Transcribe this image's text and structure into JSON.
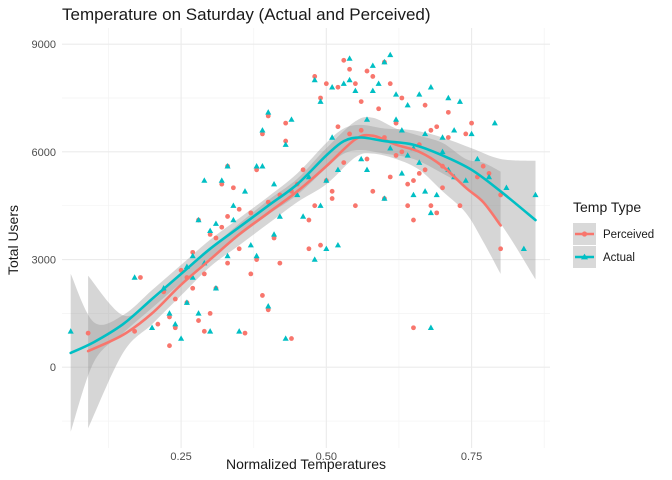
{
  "chart_data": {
    "type": "scatter",
    "title": "Temperature on Saturday (Actual and Perceived)",
    "xlabel": "Normalized Temperatures",
    "ylabel": "Total Users",
    "xlim": [
      0.045,
      0.885
    ],
    "ylim": [
      -2250,
      9450
    ],
    "x_ticks": [
      0.25,
      0.5,
      0.75
    ],
    "x_tick_labels": [
      "0.25",
      "0.50",
      "0.75"
    ],
    "x_minor_ticks": [
      0.125,
      0.375,
      0.625,
      0.875
    ],
    "y_ticks": [
      0,
      3000,
      6000,
      9000
    ],
    "y_tick_labels": [
      "0",
      "3000",
      "6000",
      "9000"
    ],
    "y_minor_ticks": [
      -1500,
      1500,
      4500,
      7500
    ],
    "grid": true,
    "legend": {
      "title": "Temp Type",
      "position": "right"
    },
    "series": [
      {
        "name": "Perceived",
        "color": "#F8766D",
        "marker": "circle",
        "points": [
          [
            0.09,
            950
          ],
          [
            0.17,
            1000
          ],
          [
            0.18,
            2500
          ],
          [
            0.21,
            1200
          ],
          [
            0.22,
            2100
          ],
          [
            0.23,
            1400
          ],
          [
            0.23,
            600
          ],
          [
            0.24,
            1900
          ],
          [
            0.24,
            1100
          ],
          [
            0.25,
            2700
          ],
          [
            0.26,
            1800
          ],
          [
            0.26,
            2500
          ],
          [
            0.27,
            2200
          ],
          [
            0.27,
            3200
          ],
          [
            0.28,
            4100
          ],
          [
            0.28,
            1300
          ],
          [
            0.29,
            2600
          ],
          [
            0.29,
            1000
          ],
          [
            0.3,
            3700
          ],
          [
            0.3,
            1500
          ],
          [
            0.31,
            3600
          ],
          [
            0.31,
            2200
          ],
          [
            0.32,
            5100
          ],
          [
            0.32,
            3900
          ],
          [
            0.33,
            5600
          ],
          [
            0.33,
            4200
          ],
          [
            0.33,
            2900
          ],
          [
            0.34,
            5000
          ],
          [
            0.35,
            4400
          ],
          [
            0.35,
            3300
          ],
          [
            0.36,
            950
          ],
          [
            0.37,
            4300
          ],
          [
            0.37,
            2600
          ],
          [
            0.38,
            5500
          ],
          [
            0.38,
            3000
          ],
          [
            0.39,
            6500
          ],
          [
            0.39,
            2000
          ],
          [
            0.4,
            7000
          ],
          [
            0.4,
            4600
          ],
          [
            0.4,
            1600
          ],
          [
            0.41,
            3600
          ],
          [
            0.42,
            2900
          ],
          [
            0.42,
            4800
          ],
          [
            0.43,
            6300
          ],
          [
            0.43,
            6800
          ],
          [
            0.44,
            800
          ],
          [
            0.44,
            4900
          ],
          [
            0.45,
            5100
          ],
          [
            0.46,
            5500
          ],
          [
            0.47,
            4100
          ],
          [
            0.47,
            3300
          ],
          [
            0.48,
            8100
          ],
          [
            0.48,
            4500
          ],
          [
            0.49,
            3400
          ],
          [
            0.49,
            7500
          ],
          [
            0.5,
            7900
          ],
          [
            0.5,
            5200
          ],
          [
            0.51,
            4700
          ],
          [
            0.51,
            4900
          ],
          [
            0.52,
            7800
          ],
          [
            0.52,
            6700
          ],
          [
            0.53,
            8550
          ],
          [
            0.53,
            5700
          ],
          [
            0.54,
            6500
          ],
          [
            0.54,
            8300
          ],
          [
            0.55,
            7900
          ],
          [
            0.55,
            4500
          ],
          [
            0.56,
            7400
          ],
          [
            0.56,
            6600
          ],
          [
            0.57,
            8250
          ],
          [
            0.57,
            5800
          ],
          [
            0.58,
            8100
          ],
          [
            0.58,
            4900
          ],
          [
            0.59,
            7200
          ],
          [
            0.6,
            8500
          ],
          [
            0.6,
            6400
          ],
          [
            0.6,
            4700
          ],
          [
            0.61,
            7900
          ],
          [
            0.61,
            5300
          ],
          [
            0.62,
            6800
          ],
          [
            0.62,
            5900
          ],
          [
            0.63,
            7500
          ],
          [
            0.63,
            6000
          ],
          [
            0.64,
            4500
          ],
          [
            0.64,
            5100
          ],
          [
            0.65,
            4100
          ],
          [
            0.65,
            5200
          ],
          [
            0.65,
            1100
          ],
          [
            0.66,
            6200
          ],
          [
            0.66,
            5400
          ],
          [
            0.67,
            5500
          ],
          [
            0.67,
            7300
          ],
          [
            0.68,
            6600
          ],
          [
            0.68,
            4500
          ],
          [
            0.69,
            6700
          ],
          [
            0.69,
            4300
          ],
          [
            0.7,
            5000
          ],
          [
            0.7,
            5600
          ],
          [
            0.71,
            6400
          ],
          [
            0.71,
            7100
          ],
          [
            0.73,
            4500
          ],
          [
            0.74,
            6500
          ],
          [
            0.75,
            6800
          ],
          [
            0.76,
            5300
          ],
          [
            0.77,
            5600
          ],
          [
            0.78,
            5400
          ],
          [
            0.8,
            4800
          ],
          [
            0.8,
            3300
          ]
        ],
        "smooth": [
          [
            0.09,
            450
          ],
          [
            0.15,
            900
          ],
          [
            0.2,
            1500
          ],
          [
            0.25,
            2300
          ],
          [
            0.3,
            3000
          ],
          [
            0.35,
            3700
          ],
          [
            0.4,
            4300
          ],
          [
            0.45,
            4900
          ],
          [
            0.5,
            5600
          ],
          [
            0.55,
            6350
          ],
          [
            0.58,
            6450
          ],
          [
            0.62,
            6200
          ],
          [
            0.66,
            6000
          ],
          [
            0.7,
            5600
          ],
          [
            0.74,
            5000
          ],
          [
            0.77,
            4600
          ],
          [
            0.8,
            3950
          ]
        ],
        "band_low": [
          [
            0.09,
            -1700
          ],
          [
            0.15,
            400
          ],
          [
            0.2,
            1200
          ],
          [
            0.25,
            2000
          ],
          [
            0.3,
            2800
          ],
          [
            0.35,
            3400
          ],
          [
            0.4,
            4000
          ],
          [
            0.45,
            4600
          ],
          [
            0.5,
            5100
          ],
          [
            0.55,
            5850
          ],
          [
            0.58,
            5950
          ],
          [
            0.62,
            5800
          ],
          [
            0.66,
            5500
          ],
          [
            0.7,
            4900
          ],
          [
            0.74,
            4300
          ],
          [
            0.77,
            3500
          ],
          [
            0.8,
            2600
          ]
        ],
        "band_high": [
          [
            0.09,
            2550
          ],
          [
            0.15,
            1450
          ],
          [
            0.2,
            1850
          ],
          [
            0.25,
            2600
          ],
          [
            0.3,
            3300
          ],
          [
            0.35,
            4000
          ],
          [
            0.4,
            4650
          ],
          [
            0.45,
            5250
          ],
          [
            0.5,
            6100
          ],
          [
            0.55,
            6850
          ],
          [
            0.58,
            6950
          ],
          [
            0.62,
            6650
          ],
          [
            0.66,
            6450
          ],
          [
            0.7,
            6250
          ],
          [
            0.74,
            5800
          ],
          [
            0.77,
            5700
          ],
          [
            0.8,
            5450
          ]
        ]
      },
      {
        "name": "Actual",
        "color": "#00BFC4",
        "marker": "triangle",
        "points": [
          [
            0.06,
            1000
          ],
          [
            0.17,
            2500
          ],
          [
            0.2,
            1100
          ],
          [
            0.22,
            2200
          ],
          [
            0.23,
            1500
          ],
          [
            0.24,
            1200
          ],
          [
            0.25,
            800
          ],
          [
            0.26,
            2800
          ],
          [
            0.26,
            1800
          ],
          [
            0.27,
            2500
          ],
          [
            0.27,
            3100
          ],
          [
            0.28,
            4100
          ],
          [
            0.28,
            1500
          ],
          [
            0.29,
            2900
          ],
          [
            0.29,
            5200
          ],
          [
            0.3,
            3800
          ],
          [
            0.3,
            1000
          ],
          [
            0.31,
            4000
          ],
          [
            0.31,
            2200
          ],
          [
            0.32,
            5200
          ],
          [
            0.33,
            5600
          ],
          [
            0.33,
            3100
          ],
          [
            0.34,
            4100
          ],
          [
            0.34,
            4500
          ],
          [
            0.35,
            1000
          ],
          [
            0.36,
            4900
          ],
          [
            0.37,
            3400
          ],
          [
            0.38,
            5600
          ],
          [
            0.38,
            3100
          ],
          [
            0.39,
            5600
          ],
          [
            0.39,
            6600
          ],
          [
            0.4,
            7100
          ],
          [
            0.4,
            1700
          ],
          [
            0.41,
            3700
          ],
          [
            0.41,
            5100
          ],
          [
            0.42,
            4200
          ],
          [
            0.43,
            6200
          ],
          [
            0.43,
            800
          ],
          [
            0.44,
            6900
          ],
          [
            0.45,
            4800
          ],
          [
            0.46,
            4200
          ],
          [
            0.47,
            5300
          ],
          [
            0.48,
            3000
          ],
          [
            0.48,
            8000
          ],
          [
            0.49,
            7400
          ],
          [
            0.49,
            4500
          ],
          [
            0.5,
            5200
          ],
          [
            0.5,
            3300
          ],
          [
            0.51,
            6400
          ],
          [
            0.51,
            7800
          ],
          [
            0.52,
            5500
          ],
          [
            0.52,
            3400
          ],
          [
            0.53,
            7900
          ],
          [
            0.54,
            8000
          ],
          [
            0.54,
            8600
          ],
          [
            0.55,
            7700
          ],
          [
            0.56,
            5800
          ],
          [
            0.57,
            6900
          ],
          [
            0.57,
            5500
          ],
          [
            0.58,
            7700
          ],
          [
            0.58,
            8400
          ],
          [
            0.59,
            7900
          ],
          [
            0.6,
            8500
          ],
          [
            0.6,
            4700
          ],
          [
            0.61,
            8700
          ],
          [
            0.61,
            6100
          ],
          [
            0.62,
            7600
          ],
          [
            0.62,
            6900
          ],
          [
            0.63,
            5400
          ],
          [
            0.63,
            6600
          ],
          [
            0.64,
            7300
          ],
          [
            0.64,
            5900
          ],
          [
            0.65,
            4800
          ],
          [
            0.65,
            6100
          ],
          [
            0.66,
            7600
          ],
          [
            0.66,
            5700
          ],
          [
            0.67,
            6500
          ],
          [
            0.67,
            4900
          ],
          [
            0.68,
            7800
          ],
          [
            0.68,
            4300
          ],
          [
            0.68,
            1100
          ],
          [
            0.69,
            4800
          ],
          [
            0.7,
            6400
          ],
          [
            0.7,
            6000
          ],
          [
            0.71,
            5500
          ],
          [
            0.71,
            7500
          ],
          [
            0.72,
            6600
          ],
          [
            0.72,
            5300
          ],
          [
            0.73,
            7400
          ],
          [
            0.74,
            5200
          ],
          [
            0.75,
            6500
          ],
          [
            0.76,
            5800
          ],
          [
            0.78,
            5300
          ],
          [
            0.79,
            6800
          ],
          [
            0.81,
            5000
          ],
          [
            0.84,
            3300
          ],
          [
            0.86,
            4800
          ]
        ],
        "smooth": [
          [
            0.06,
            400
          ],
          [
            0.1,
            700
          ],
          [
            0.15,
            1200
          ],
          [
            0.2,
            1900
          ],
          [
            0.25,
            2600
          ],
          [
            0.3,
            3300
          ],
          [
            0.35,
            3900
          ],
          [
            0.4,
            4500
          ],
          [
            0.45,
            5100
          ],
          [
            0.5,
            5900
          ],
          [
            0.53,
            6300
          ],
          [
            0.56,
            6400
          ],
          [
            0.6,
            6300
          ],
          [
            0.65,
            6200
          ],
          [
            0.7,
            5900
          ],
          [
            0.75,
            5500
          ],
          [
            0.8,
            4900
          ],
          [
            0.86,
            4100
          ]
        ],
        "band_low": [
          [
            0.06,
            -1800
          ],
          [
            0.1,
            150
          ],
          [
            0.15,
            950
          ],
          [
            0.2,
            1650
          ],
          [
            0.25,
            2350
          ],
          [
            0.3,
            3050
          ],
          [
            0.35,
            3650
          ],
          [
            0.4,
            4250
          ],
          [
            0.45,
            4800
          ],
          [
            0.5,
            5550
          ],
          [
            0.53,
            5950
          ],
          [
            0.56,
            6050
          ],
          [
            0.6,
            5950
          ],
          [
            0.65,
            5800
          ],
          [
            0.7,
            5400
          ],
          [
            0.75,
            4900
          ],
          [
            0.8,
            4000
          ],
          [
            0.86,
            2450
          ]
        ],
        "band_high": [
          [
            0.06,
            2600
          ],
          [
            0.1,
            1250
          ],
          [
            0.15,
            1450
          ],
          [
            0.2,
            2150
          ],
          [
            0.25,
            2850
          ],
          [
            0.3,
            3550
          ],
          [
            0.35,
            4150
          ],
          [
            0.4,
            4750
          ],
          [
            0.45,
            5400
          ],
          [
            0.5,
            6250
          ],
          [
            0.53,
            6650
          ],
          [
            0.56,
            6750
          ],
          [
            0.6,
            6650
          ],
          [
            0.65,
            6600
          ],
          [
            0.7,
            6400
          ],
          [
            0.75,
            6100
          ],
          [
            0.8,
            5800
          ],
          [
            0.86,
            5750
          ]
        ]
      }
    ]
  }
}
